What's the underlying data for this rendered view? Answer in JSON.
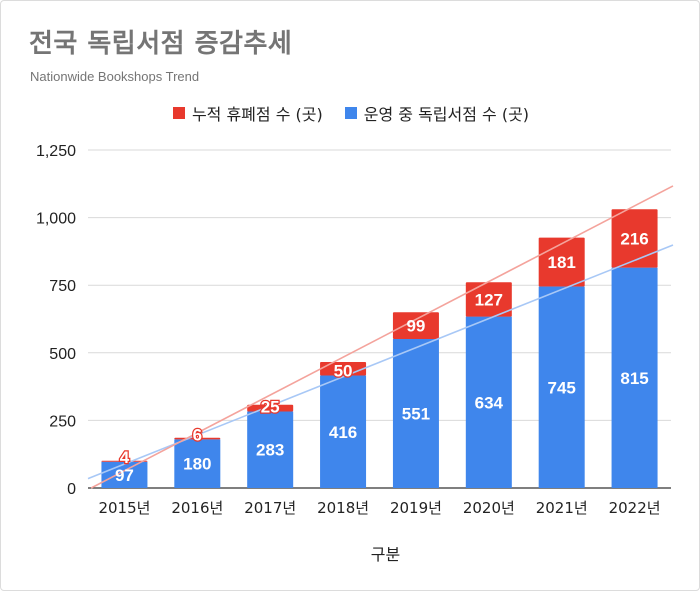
{
  "title": "전국 독립서점 증감추세",
  "subtitle": "Nationwide Bookshops Trend",
  "legend": [
    {
      "label": "누적 휴폐점 수 (곳)",
      "color": "#e8392d"
    },
    {
      "label": "운영 중 독립서점 수 (곳)",
      "color": "#3f86ec"
    }
  ],
  "chart_data": {
    "type": "bar",
    "stacked": true,
    "categories": [
      "2015년",
      "2016년",
      "2017년",
      "2018년",
      "2019년",
      "2020년",
      "2021년",
      "2022년"
    ],
    "series": [
      {
        "name": "운영 중 독립서점 수 (곳)",
        "color": "#3f86ec",
        "values": [
          97,
          180,
          283,
          416,
          551,
          634,
          745,
          815
        ]
      },
      {
        "name": "누적 휴폐점 수 (곳)",
        "color": "#e8392d",
        "values": [
          4,
          6,
          25,
          50,
          99,
          127,
          181,
          216
        ]
      }
    ],
    "trendlines": [
      {
        "series": "운영 중 독립서점 수 (곳)",
        "color": "#a8c8f6"
      },
      {
        "series": "누적 휴폐점 수 (곳)",
        "color": "#f4a39c"
      }
    ],
    "xlabel": "구분",
    "ylabel": "",
    "ylim": [
      0,
      1250
    ],
    "yticks": [
      0,
      250,
      500,
      750,
      1000,
      1250
    ],
    "ytick_labels": [
      "0",
      "250",
      "500",
      "750",
      "1,000",
      "1,250"
    ],
    "grid": true,
    "legend_position": "top"
  }
}
